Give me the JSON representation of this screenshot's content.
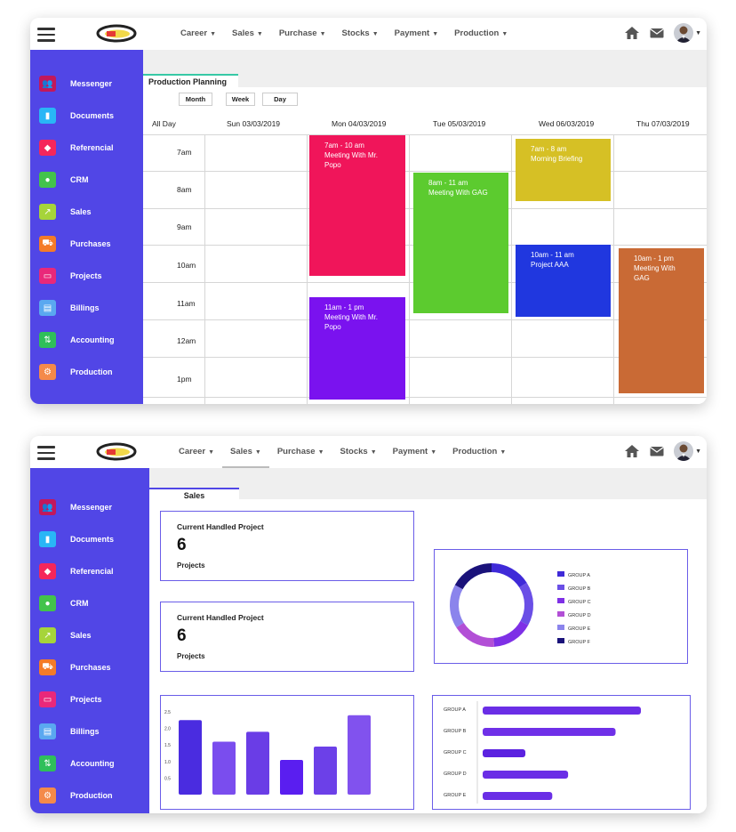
{
  "nav": {
    "items": [
      {
        "label": "Career"
      },
      {
        "label": "Sales"
      },
      {
        "label": "Purchase"
      },
      {
        "label": "Stocks"
      },
      {
        "label": "Payment"
      },
      {
        "label": "Production"
      }
    ]
  },
  "sidebar": {
    "items": [
      {
        "label": "Messenger",
        "icon": "users-icon",
        "color": "#c2185b"
      },
      {
        "label": "Documents",
        "icon": "clipboard-icon",
        "color": "#29b6f6"
      },
      {
        "label": "Referencial",
        "icon": "cube-icon",
        "color": "#f5265b"
      },
      {
        "label": "CRM",
        "icon": "person-icon",
        "color": "#43c34b"
      },
      {
        "label": "Sales",
        "icon": "trend-icon",
        "color": "#a6d43a"
      },
      {
        "label": "Purchases",
        "icon": "cart-icon",
        "color": "#f47b28"
      },
      {
        "label": "Projects",
        "icon": "card-icon",
        "color": "#e9287a"
      },
      {
        "label": "Billings",
        "icon": "file-icon",
        "color": "#5aa8f0"
      },
      {
        "label": "Accounting",
        "icon": "sliders-icon",
        "color": "#2fbf5a"
      },
      {
        "label": "Production",
        "icon": "gear-icon",
        "color": "#f48a4a"
      }
    ]
  },
  "calendar": {
    "tab_label": "Production Planning",
    "views": {
      "month": "Month",
      "week": "Week",
      "day": "Day"
    },
    "all_day": "All Day",
    "days": [
      "Sun 03/03/2019",
      "Mon 04/03/2019",
      "Tue 05/03/2019",
      "Wed 06/03/2019",
      "Thu 07/03/2019"
    ],
    "times": [
      "7am",
      "8am",
      "9am",
      "10am",
      "11am",
      "12am",
      "1pm"
    ],
    "events": [
      {
        "time": "7am - 10 am",
        "title": "Meeting With Mr. Popo",
        "color": "#f0155a"
      },
      {
        "time": "11am - 1 pm",
        "title": "Meeting With Mr. Popo",
        "color": "#7a12ef"
      },
      {
        "time": "8am - 11 am",
        "title": "Meeting With GAG",
        "color": "#5ccb2f"
      },
      {
        "time": "7am - 8 am",
        "title": "Morning Briefing",
        "color": "#d6c025"
      },
      {
        "time": "10am - 11 am",
        "title": "Project AAA",
        "color": "#2037df"
      },
      {
        "time": "10am - 1 pm",
        "title": "Meeting With GAG",
        "color": "#c96a35"
      }
    ]
  },
  "dashboard": {
    "tab_label": "Sales",
    "cards": [
      {
        "title": "Current Handled Project",
        "value": "6",
        "unit": "Projects"
      },
      {
        "title": "Current Handled Project",
        "value": "6",
        "unit": "Projects"
      }
    ]
  },
  "chart_data": [
    {
      "type": "pie",
      "title": "",
      "legend": [
        "GROUP A",
        "GROUP B",
        "GROUP C",
        "GROUP D",
        "GROUP E",
        "GROUP F"
      ],
      "colors": [
        "#3f2ad8",
        "#6a4fe6",
        "#7e30e6",
        "#b24fd6",
        "#8b84ec",
        "#1a127a"
      ],
      "values": [
        16,
        17,
        16,
        17,
        17,
        17
      ],
      "legend_position": "right"
    },
    {
      "type": "bar",
      "title": "",
      "categories": [
        "",
        "",
        "",
        "",
        "",
        ""
      ],
      "values": [
        2.25,
        1.6,
        1.9,
        1.05,
        1.45,
        2.4
      ],
      "colors": [
        "#4a2ce0",
        "#7a4dee",
        "#6a3de6",
        "#5a1ef0",
        "#6c40e8",
        "#8152ee"
      ],
      "ylim": [
        0,
        2.5
      ],
      "yticks": [
        "2.5",
        "2.0",
        "1.5",
        "1.0",
        "0.5"
      ]
    },
    {
      "type": "bar",
      "orientation": "horizontal",
      "title": "",
      "categories": [
        "GROUP A",
        "GROUP B",
        "GROUP C",
        "GROUP D",
        "GROUP E"
      ],
      "values": [
        100,
        84,
        27,
        54,
        44
      ],
      "colors": [
        "#6a2ee6",
        "#6f30e8",
        "#5b22e0",
        "#6a2ee6",
        "#6a2ee6"
      ]
    }
  ]
}
